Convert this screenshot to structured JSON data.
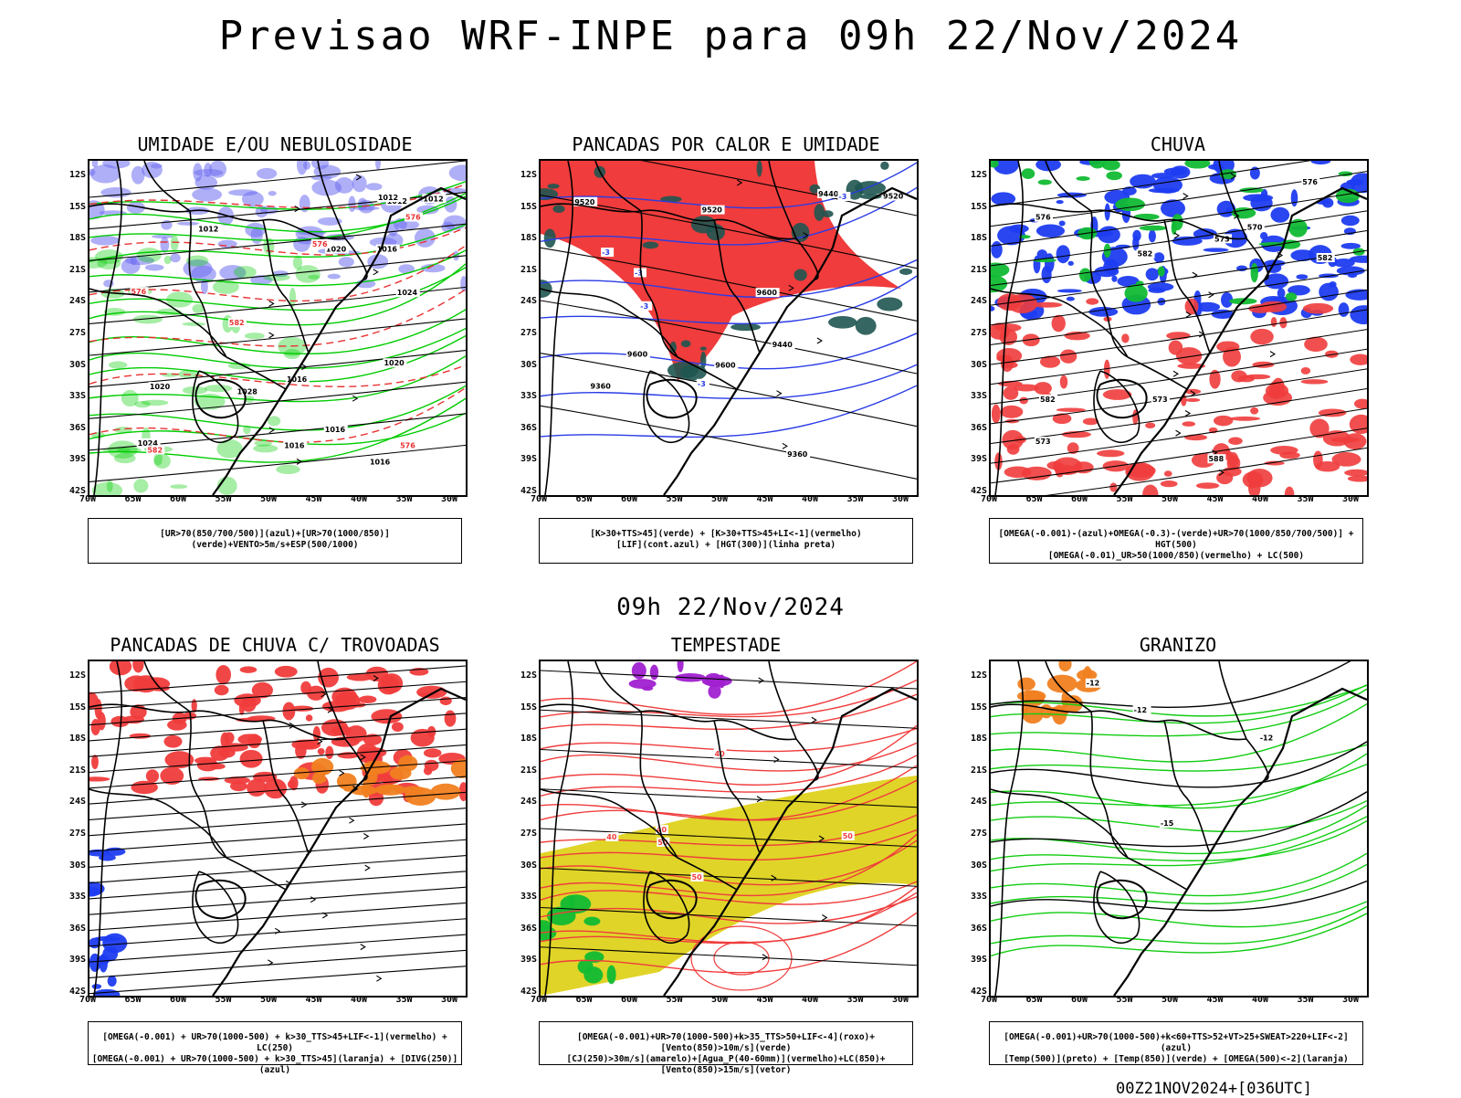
{
  "page": {
    "title": "Previsao WRF-INPE  para 09h 22/Nov/2024",
    "subtitle": "09h 22/Nov/2024",
    "footer": "00Z21NOV2024+[036UTC]"
  },
  "axes": {
    "lat_labels": [
      "12S",
      "15S",
      "18S",
      "21S",
      "24S",
      "27S",
      "30S",
      "33S",
      "36S",
      "39S",
      "42S"
    ],
    "lon_labels": [
      "70W",
      "65W",
      "60W",
      "55W",
      "50W",
      "45W",
      "40W",
      "35W",
      "30W"
    ]
  },
  "panels": [
    {
      "title": "UMIDADE E/OU NEBULOSIDADE",
      "caption_lines": [
        "[UR>70(850/700/500)](azul)+[UR>70(1000/850)](verde)+VENTO>5m/s+ESP(500/1000)"
      ],
      "contour_labels": [
        "1012",
        "1012",
        "1012",
        "1020",
        "1016",
        "1016",
        "1012",
        "1016",
        "1016",
        "1020",
        "1016",
        "1020",
        "1024",
        "1028",
        "1024",
        "576",
        "576",
        "576",
        "582",
        "576",
        "582"
      ],
      "colors": {
        "mid_rh": "#6e6ef0",
        "low_rh": "#00cc00",
        "thickness": "#e83232"
      }
    },
    {
      "title": "PANCADAS POR CALOR E UMIDADE",
      "caption_lines": [
        "[K>30+TTS>45](verde) + [K>30+TTS>45+LI<-1](vermelho)",
        "[LIF](cont.azul) + [HGT(300)](linha preta)"
      ],
      "contour_labels": [
        "9600",
        "9520",
        "9600",
        "9600",
        "9520",
        "9440",
        "9520",
        "9360",
        "9440",
        "9360",
        "-3",
        "-3",
        "-3",
        "-3",
        "-3"
      ],
      "colors": {
        "unstable": "#f03c3c",
        "humid": "#1f5550",
        "lif": "#2a3ce6"
      }
    },
    {
      "title": "CHUVA",
      "caption_lines": [
        "[OMEGA(-0.001)-(azul)+OMEGA(-0.3)-(verde)+UR>70(1000/850/700/500)] + HGT(500)",
        "[OMEGA(-0.01)_UR>50(1000/850)(vermelho) + LC(500)"
      ],
      "contour_labels": [
        "588",
        "582",
        "582",
        "576",
        "573",
        "573",
        "570",
        "582",
        "576",
        "573"
      ],
      "colors": {
        "rain_mid": "#1e3cf0",
        "rain_heavy": "#11bb33",
        "rain_low": "#f03c3c"
      }
    },
    {
      "title": "PANCADAS DE CHUVA C/ TROVOADAS",
      "caption_lines": [
        "[OMEGA(-0.001) + UR>70(1000-500) + k>30_TTS>45+LIF<-1](vermelho) + LC(250)",
        "[OMEGA(-0.001) + UR>70(1000-500) + k>30_TTS>45](laranja) + [DIVG(250)](azul)"
      ],
      "contour_labels": [],
      "colors": {
        "storm": "#f03c3c",
        "convective": "#f08020",
        "divergence": "#1e3cf0"
      }
    },
    {
      "title": "TEMPESTADE",
      "caption_lines": [
        "[OMEGA(-0.001)+UR>70(1000-500)+k>35_TTS>50+LIF<-4](roxo)+[Vento(850)>10m/s](verde)",
        "[CJ(250)>30m/s](amarelo)+[Agua_P(40-60mm)](vermelho)+LC(850)+[Vento(850)>15m/s](vetor)"
      ],
      "contour_labels": [
        "50",
        "50",
        "50",
        "40",
        "40",
        "40"
      ],
      "colors": {
        "jet": "#e0d428",
        "precip_water": "#f03c3c",
        "severe": "#a020d0",
        "wind": "#11bb33"
      }
    },
    {
      "title": "GRANIZO",
      "caption_lines": [
        "[OMEGA(-0.001)+UR>70(1000-500)+k<60+TTS>52+VT>25+SWEAT>220+LIF<-2](azul)",
        "[Temp(500)](preto) + [Temp(850)](verde) + [OMEGA(500)<-2](laranja)"
      ],
      "contour_labels": [
        "-12",
        "-15",
        "-12",
        "-12"
      ],
      "colors": {
        "temp850": "#11cc11",
        "omega": "#f08020",
        "hail": "#1e3cf0"
      }
    }
  ]
}
